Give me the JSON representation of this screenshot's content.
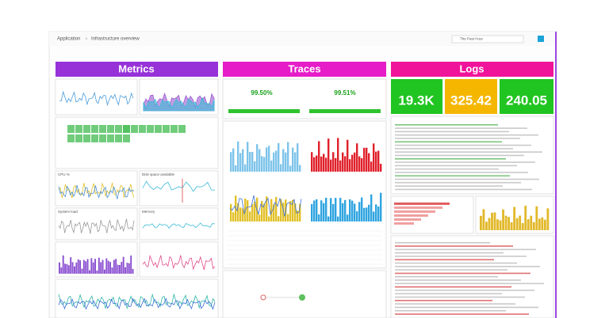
{
  "header": {
    "breadcrumb": "Application",
    "title": "Infrastructure overview",
    "time": "The Past Hour"
  },
  "metrics": {
    "title": "Metrics",
    "panels": [
      "CPU %",
      "Disk space available",
      "System load",
      "Memory"
    ]
  },
  "traces": {
    "title": "Traces",
    "stats": [
      "99.50%",
      "99.51%"
    ]
  },
  "logs": {
    "title": "Logs",
    "stats": [
      "19.3K",
      "325.42",
      "240.05"
    ]
  }
}
